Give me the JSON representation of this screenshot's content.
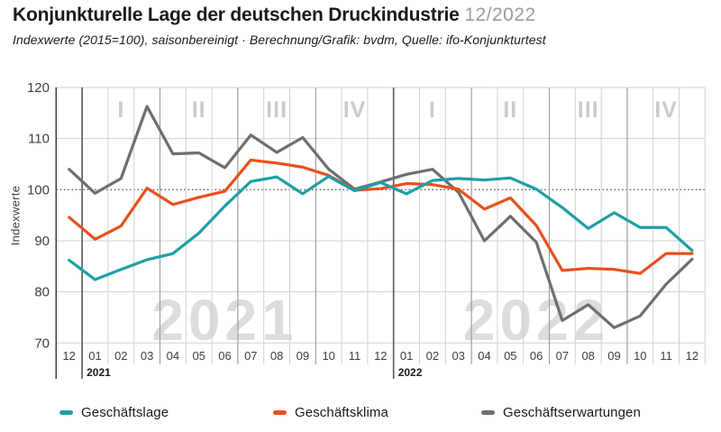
{
  "header": {
    "title": "Konjunkturelle Lage der deutschen Druckindustrie",
    "date": "12/2022",
    "subtitle": "Indexwerte (2015=100), saisonbereinigt · Berechnung/Grafik: bvdm, Quelle: ifo-Konjunkturtest"
  },
  "chart_data": {
    "type": "line",
    "title": "Konjunkturelle Lage der deutschen Druckindustrie 12/2022",
    "ylabel": "Indexwerte",
    "ylim": [
      70,
      120
    ],
    "yticks": [
      70,
      80,
      90,
      100,
      110,
      120
    ],
    "highlighted_gridline": 100,
    "grid": "on",
    "legend_position": "bottom",
    "x_labels": [
      "12",
      "01",
      "02",
      "03",
      "04",
      "05",
      "06",
      "07",
      "08",
      "09",
      "10",
      "11",
      "12",
      "01",
      "02",
      "03",
      "04",
      "05",
      "06",
      "07",
      "08",
      "09",
      "10",
      "11",
      "12"
    ],
    "year_labels": [
      {
        "text": "2021",
        "start_month_index": 1
      },
      {
        "text": "2022",
        "start_month_index": 13
      }
    ],
    "quarter_labels": [
      {
        "text": "I",
        "center_month_index": 2
      },
      {
        "text": "II",
        "center_month_index": 5
      },
      {
        "text": "III",
        "center_month_index": 8
      },
      {
        "text": "IV",
        "center_month_index": 11
      },
      {
        "text": "I",
        "center_month_index": 14
      },
      {
        "text": "II",
        "center_month_index": 17
      },
      {
        "text": "III",
        "center_month_index": 20
      },
      {
        "text": "IV",
        "center_month_index": 23
      }
    ],
    "watermarks": [
      {
        "text": "2021",
        "center_month_index": 6
      },
      {
        "text": "2022",
        "center_month_index": 18
      }
    ],
    "series": [
      {
        "name": "Geschäftslage",
        "color": "#1d9fa4",
        "values": [
          86.2,
          82.4,
          84.4,
          86.3,
          87.5,
          91.5,
          96.8,
          101.6,
          102.5,
          99.2,
          102.6,
          99.8,
          101.4,
          99.2,
          101.8,
          102.2,
          101.9,
          102.3,
          100.1,
          96.5,
          92.4,
          95.5,
          92.6,
          92.6,
          88.1
        ]
      },
      {
        "name": "Geschäftsklima",
        "color": "#e8501d",
        "values": [
          94.6,
          90.3,
          92.9,
          100.3,
          97.1,
          98.5,
          99.7,
          105.8,
          105.2,
          104.4,
          102.8,
          99.9,
          100.2,
          101.2,
          101.0,
          100.1,
          96.2,
          98.4,
          93.0,
          84.2,
          84.6,
          84.4,
          83.6,
          87.5,
          87.5
        ]
      },
      {
        "name": "Geschäftserwartungen",
        "color": "#6d6e71",
        "values": [
          104.0,
          99.3,
          102.2,
          116.3,
          107.0,
          107.2,
          104.3,
          110.7,
          107.3,
          110.2,
          104.0,
          100.1,
          101.5,
          103.0,
          104.0,
          99.5,
          90.0,
          94.8,
          89.7,
          74.4,
          77.5,
          73.0,
          75.3,
          81.5,
          86.4
        ]
      }
    ],
    "colors": {
      "grid_light": "#cfd0d2",
      "grid_quarter": "#9ea0a3",
      "grid_year": "#57585a",
      "axis": "#404144",
      "dotted_100": "#5a5b5d",
      "quarter_numeral": "#c9cbcd",
      "watermark": "#dbdcdd",
      "tick_text": "#3e3f41"
    }
  }
}
